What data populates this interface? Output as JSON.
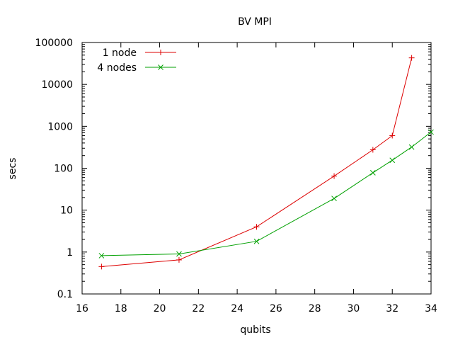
{
  "chart_data": {
    "type": "line",
    "title": "BV MPI",
    "xlabel": "qubits",
    "ylabel": "secs",
    "xlim": [
      16,
      34
    ],
    "ylim": [
      0.1,
      100000
    ],
    "yscale": "log",
    "grid": false,
    "legend_position": "top-left",
    "x_ticks": [
      16,
      18,
      20,
      22,
      24,
      26,
      28,
      30,
      32,
      34
    ],
    "x_tick_labels": [
      "16",
      "18",
      "20",
      "22",
      "24",
      "26",
      "28",
      "30",
      "32",
      "34"
    ],
    "y_ticks": [
      0.1,
      1,
      10,
      100,
      1000,
      10000,
      100000
    ],
    "y_tick_labels": [
      "0.1",
      "1",
      "10",
      "100",
      "1000",
      "10000",
      "100000"
    ],
    "series": [
      {
        "name": "1 node",
        "color": "#dd0000",
        "marker": "plus",
        "x": [
          17,
          21,
          25,
          29,
          31,
          32,
          33
        ],
        "y": [
          0.45,
          0.65,
          4.0,
          65,
          275,
          600,
          43000
        ]
      },
      {
        "name": "4 nodes",
        "color": "#00a000",
        "marker": "cross",
        "x": [
          17,
          21,
          25,
          29,
          31,
          32,
          33,
          34
        ],
        "y": [
          0.82,
          0.9,
          1.8,
          19,
          78,
          155,
          320,
          730
        ]
      }
    ]
  }
}
